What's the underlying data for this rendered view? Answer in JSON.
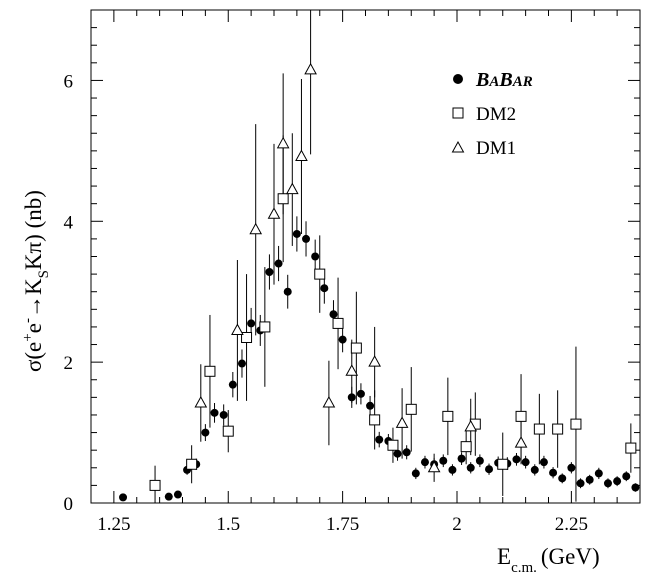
{
  "chart_data": {
    "type": "scatter",
    "ylabel": "σ(e+e−→KSKπ) (nb)",
    "ylabel_parts": {
      "sigma": "σ(e",
      "plus": "+",
      "e": "e",
      "minus": "-",
      "arrow": "→K",
      "S": "S",
      "rest": "Kπ) (nb)"
    },
    "xlabel": "Ec.m.(GeV)",
    "xlabel_parts": {
      "E": "E",
      "sub": "c.m.",
      "unit": "(GeV)"
    },
    "xlim": [
      1.2,
      2.4
    ],
    "ylim": [
      0,
      7
    ],
    "xticks": [
      1.25,
      1.5,
      1.75,
      2,
      2.25
    ],
    "xtick_labels": [
      "1.25",
      "1.5",
      "1.75",
      "2",
      "2.25"
    ],
    "yticks": [
      0,
      2,
      4,
      6
    ],
    "ytick_labels": [
      "0",
      "2",
      "4",
      "6"
    ],
    "legend": {
      "placement": "top-right",
      "babar": "BABAR",
      "babar_parts": [
        "B",
        "A",
        "B",
        "AR"
      ],
      "dm2": "DM2",
      "dm1": "DM1"
    },
    "series": [
      {
        "name": "BABAR",
        "marker": "filled-circle",
        "points": [
          [
            1.27,
            0.08,
            0.04
          ],
          [
            1.37,
            0.09,
            0.04
          ],
          [
            1.39,
            0.12,
            0.05
          ],
          [
            1.41,
            0.47,
            0.07
          ],
          [
            1.43,
            0.55,
            0.08
          ],
          [
            1.45,
            1.0,
            0.12
          ],
          [
            1.47,
            1.28,
            0.14
          ],
          [
            1.49,
            1.25,
            0.15
          ],
          [
            1.51,
            1.68,
            0.18
          ],
          [
            1.53,
            1.98,
            0.2
          ],
          [
            1.55,
            2.55,
            0.22
          ],
          [
            1.57,
            2.45,
            0.22
          ],
          [
            1.59,
            3.28,
            0.25
          ],
          [
            1.61,
            3.4,
            0.25
          ],
          [
            1.63,
            3.0,
            0.24
          ],
          [
            1.65,
            3.82,
            0.25
          ],
          [
            1.67,
            3.75,
            0.25
          ],
          [
            1.69,
            3.5,
            0.24
          ],
          [
            1.71,
            3.05,
            0.22
          ],
          [
            1.73,
            2.68,
            0.2
          ],
          [
            1.75,
            2.32,
            0.18
          ],
          [
            1.77,
            1.5,
            0.15
          ],
          [
            1.79,
            1.55,
            0.15
          ],
          [
            1.81,
            1.38,
            0.14
          ],
          [
            1.83,
            0.9,
            0.11
          ],
          [
            1.85,
            0.88,
            0.1
          ],
          [
            1.87,
            0.7,
            0.1
          ],
          [
            1.89,
            0.72,
            0.1
          ],
          [
            1.91,
            0.42,
            0.08
          ],
          [
            1.93,
            0.58,
            0.09
          ],
          [
            1.95,
            0.55,
            0.09
          ],
          [
            1.97,
            0.6,
            0.09
          ],
          [
            1.99,
            0.47,
            0.08
          ],
          [
            2.01,
            0.63,
            0.09
          ],
          [
            2.03,
            0.5,
            0.08
          ],
          [
            2.05,
            0.6,
            0.09
          ],
          [
            2.07,
            0.48,
            0.08
          ],
          [
            2.09,
            0.57,
            0.09
          ],
          [
            2.11,
            0.56,
            0.09
          ],
          [
            2.13,
            0.62,
            0.09
          ],
          [
            2.15,
            0.58,
            0.09
          ],
          [
            2.17,
            0.47,
            0.08
          ],
          [
            2.19,
            0.58,
            0.09
          ],
          [
            2.21,
            0.43,
            0.08
          ],
          [
            2.23,
            0.35,
            0.07
          ],
          [
            2.25,
            0.5,
            0.08
          ],
          [
            2.27,
            0.28,
            0.07
          ],
          [
            2.29,
            0.33,
            0.07
          ],
          [
            2.31,
            0.42,
            0.08
          ],
          [
            2.33,
            0.28,
            0.07
          ],
          [
            2.35,
            0.31,
            0.07
          ],
          [
            2.37,
            0.38,
            0.07
          ],
          [
            2.39,
            0.22,
            0.06
          ]
        ]
      },
      {
        "name": "DM2",
        "marker": "open-square",
        "points": [
          [
            1.34,
            0.25,
            0.28
          ],
          [
            1.42,
            0.55,
            0.27
          ],
          [
            1.46,
            1.87,
            0.8
          ],
          [
            1.5,
            1.02,
            0.3
          ],
          [
            1.54,
            2.35,
            0.9
          ],
          [
            1.58,
            2.5,
            0.85
          ],
          [
            1.62,
            4.32,
            0.9
          ],
          [
            1.7,
            3.25,
            0.55
          ],
          [
            1.74,
            2.55,
            0.65
          ],
          [
            1.78,
            2.2,
            0.8
          ],
          [
            1.82,
            1.18,
            0.42
          ],
          [
            1.86,
            0.82,
            0.25
          ],
          [
            1.9,
            1.33,
            0.6
          ],
          [
            1.98,
            1.23,
            0.55
          ],
          [
            2.02,
            0.8,
            0.25
          ],
          [
            2.04,
            1.12,
            0.45
          ],
          [
            2.1,
            0.55,
            0.45
          ],
          [
            2.14,
            1.23,
            0.6
          ],
          [
            2.18,
            1.05,
            0.5
          ],
          [
            2.22,
            1.05,
            0.55
          ],
          [
            2.26,
            1.12,
            1.1
          ],
          [
            2.38,
            0.78,
            0.35
          ]
        ]
      },
      {
        "name": "DM1",
        "marker": "open-triangle",
        "points": [
          [
            1.44,
            1.42,
            0.55
          ],
          [
            1.52,
            2.45,
            1.0
          ],
          [
            1.56,
            3.88,
            1.5
          ],
          [
            1.6,
            4.1,
            1.0
          ],
          [
            1.62,
            5.1,
            1.0
          ],
          [
            1.64,
            4.45,
            0.8
          ],
          [
            1.66,
            4.92,
            1.1
          ],
          [
            1.68,
            6.15,
            1.2
          ],
          [
            1.72,
            1.42,
            0.6
          ],
          [
            1.77,
            1.87,
            0.45
          ],
          [
            1.82,
            2.0,
            0.5
          ],
          [
            1.88,
            1.13,
            0.5
          ],
          [
            1.95,
            0.5,
            0.2
          ],
          [
            2.03,
            1.08,
            0.4
          ],
          [
            2.14,
            0.85,
            0.3
          ]
        ]
      }
    ]
  }
}
